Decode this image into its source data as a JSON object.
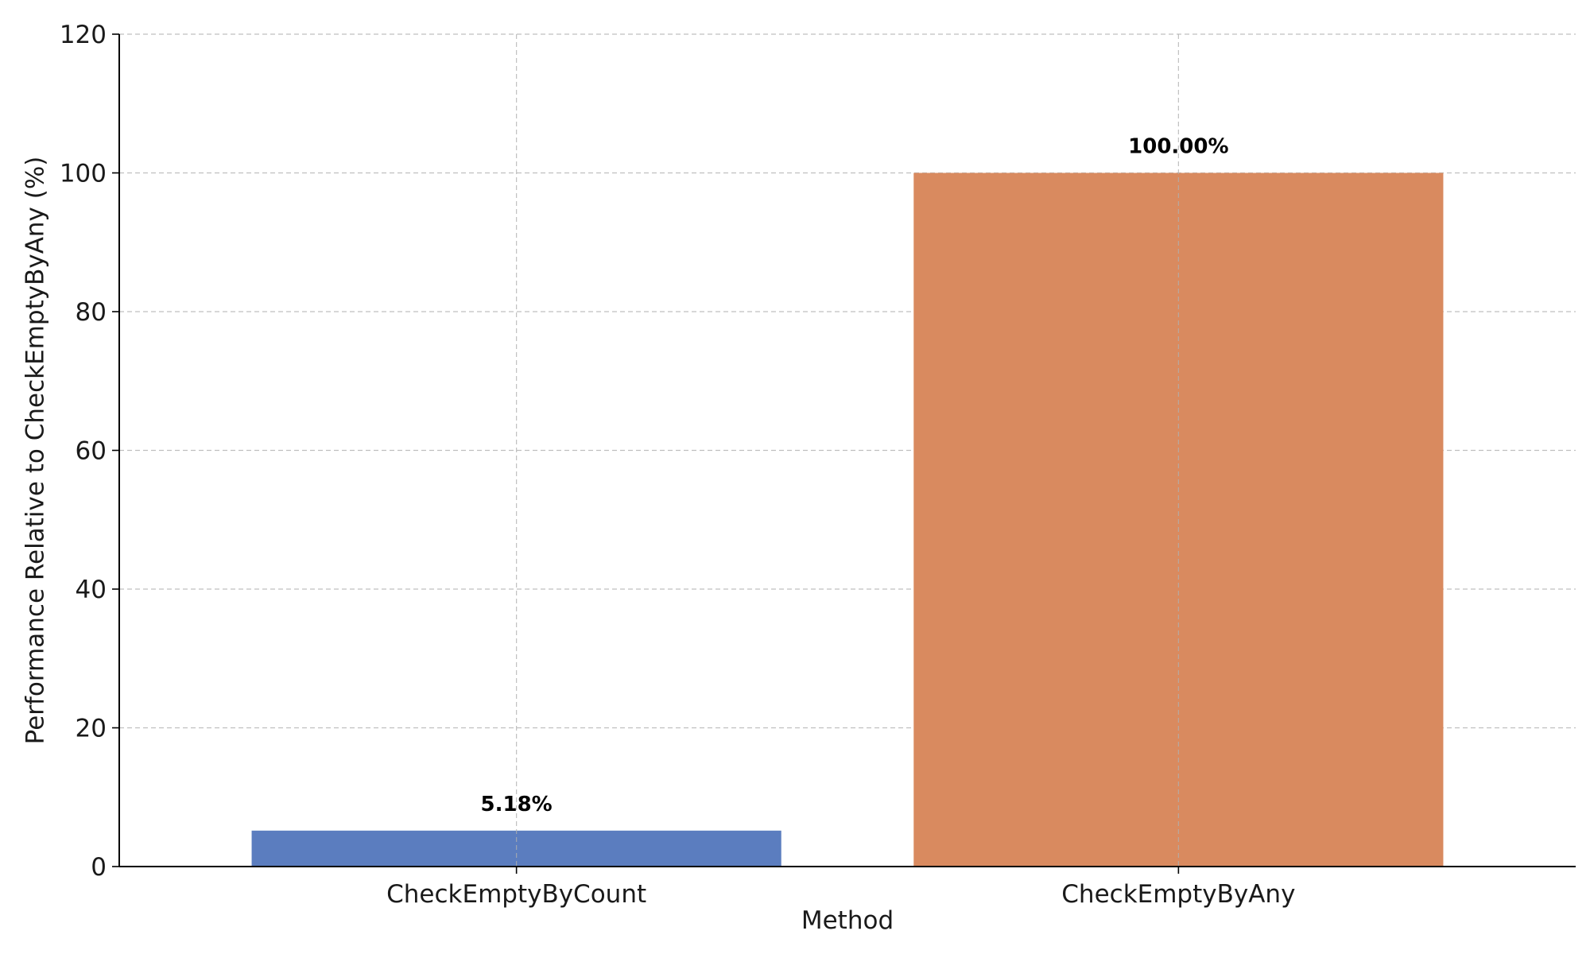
{
  "chart_data": {
    "type": "bar",
    "categories": [
      "CheckEmptyByCount",
      "CheckEmptyByAny"
    ],
    "values": [
      5.18,
      100.0
    ],
    "value_labels": [
      "5.18%",
      "100.00%"
    ],
    "colors": [
      "#5b7dbf",
      "#d98a5f"
    ],
    "xlabel": "Method",
    "ylabel": "Performance Relative to CheckEmptyByAny (%)",
    "ylim": [
      0,
      120
    ],
    "yticks": [
      0,
      20,
      40,
      60,
      80,
      100,
      120
    ],
    "grid": true
  }
}
